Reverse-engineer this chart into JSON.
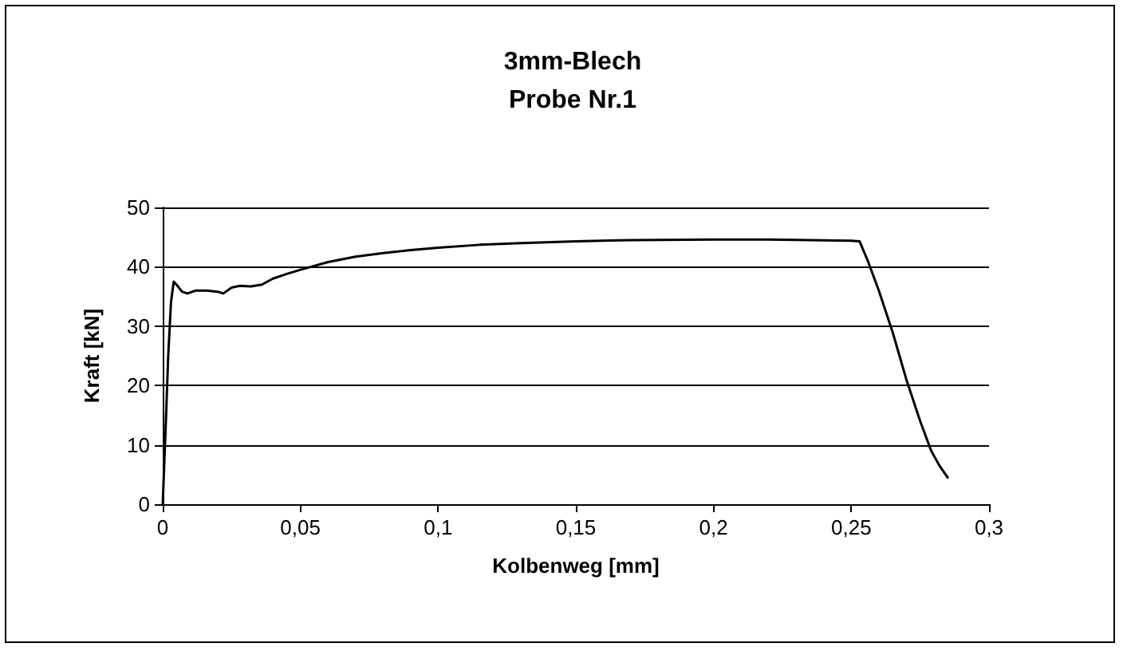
{
  "chart_data": {
    "type": "line",
    "title": "3mm-Blech\nProbe Nr.1",
    "xlabel": "Kolbenweg [mm]",
    "ylabel": "Kraft [kN]",
    "x": [
      0,
      0.001,
      0.002,
      0.003,
      0.004,
      0.005,
      0.007,
      0.009,
      0.012,
      0.016,
      0.02,
      0.022,
      0.025,
      0.028,
      0.032,
      0.036,
      0.04,
      0.045,
      0.05,
      0.06,
      0.07,
      0.08,
      0.09,
      0.1,
      0.115,
      0.13,
      0.15,
      0.17,
      0.2,
      0.22,
      0.25,
      0.253,
      0.256,
      0.26,
      0.265,
      0.27,
      0.275,
      0.279,
      0.282,
      0.285
    ],
    "series": [
      {
        "color": "#000000",
        "values": [
          0,
          12,
          25,
          34,
          37.5,
          37,
          35.8,
          35.5,
          36,
          36,
          35.8,
          35.5,
          36.5,
          36.8,
          36.7,
          37,
          38,
          38.8,
          39.5,
          40.8,
          41.7,
          42.3,
          42.8,
          43.2,
          43.7,
          44,
          44.3,
          44.5,
          44.6,
          44.6,
          44.4,
          44.3,
          41,
          36,
          29,
          21,
          14,
          9,
          6.5,
          4.5
        ]
      }
    ],
    "xlim": [
      0,
      0.3
    ],
    "xticks": [
      0,
      {
        "value": 0.05,
        "label": "0,05"
      },
      {
        "value": 0.1,
        "label": "0,1"
      },
      {
        "value": 0.15,
        "label": "0,15"
      },
      {
        "value": 0.2,
        "label": "0,2"
      },
      {
        "value": 0.25,
        "label": "0,25"
      },
      {
        "value": 0.3,
        "label": "0,3"
      }
    ],
    "ylim": [
      0,
      50
    ],
    "yticks": [
      0,
      10,
      20,
      30,
      40,
      50
    ],
    "grid": "y",
    "marker": "none",
    "line_style": "solid"
  }
}
